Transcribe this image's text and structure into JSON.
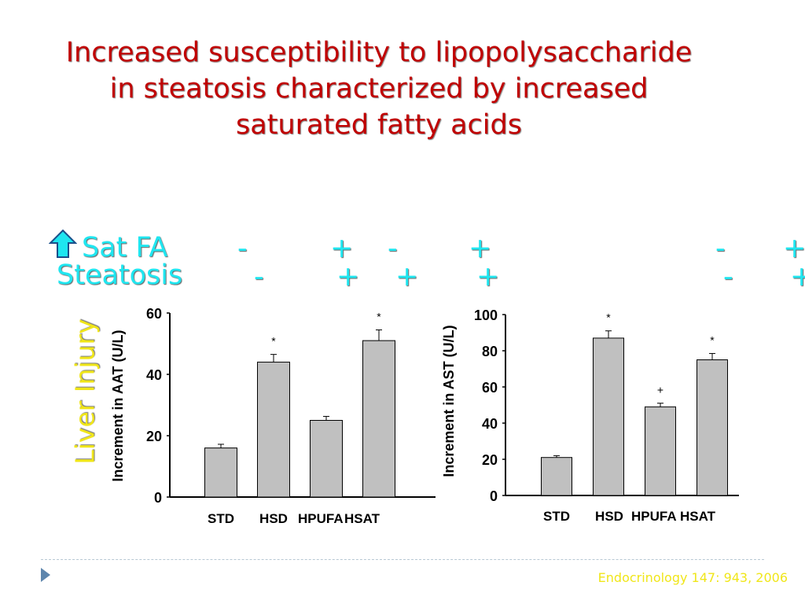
{
  "title_lines": [
    "Increased susceptibility to lipopolysaccharide",
    "in steatosis characterized by increased",
    "saturated fatty acids"
  ],
  "rows": {
    "satfa": {
      "label": "Sat FA",
      "signs_left": [
        "-",
        "+",
        "-",
        "+"
      ],
      "signs_right": [
        "-",
        "+"
      ]
    },
    "steatosis": {
      "label": "Steatosis",
      "signs_left": [
        "-",
        "+",
        "+",
        "+"
      ],
      "signs_right": [
        "-",
        "+"
      ]
    }
  },
  "side_label": "Liver Injury",
  "colors": {
    "title": "#c00000",
    "rows": "#1fe6f0",
    "side": "#f0e61a",
    "bar": "#c0c0c0",
    "citation": "#f0e61a"
  },
  "icons": {
    "up_arrow": "up-arrow-icon",
    "nav": "triangle-right-icon"
  },
  "citation": "Endocrinology 147: 943, 2006",
  "chart_data": [
    {
      "type": "bar",
      "categories": [
        "STD",
        "HSD",
        "HPUFA",
        "HSAT"
      ],
      "values": [
        16,
        44,
        25,
        51
      ],
      "errors": [
        1.2,
        2.5,
        1.3,
        3.5
      ],
      "annotations": [
        "",
        "*",
        "",
        "*"
      ],
      "ylabel": "Increment in AAT (U/L)",
      "ylim": [
        0,
        60
      ],
      "yticks": [
        "0",
        "20",
        "40",
        "60"
      ]
    },
    {
      "type": "bar",
      "categories": [
        "STD",
        "HSD",
        "HPUFA",
        "HSAT"
      ],
      "values": [
        21,
        87,
        49,
        75
      ],
      "errors": [
        1,
        4,
        2,
        3.5
      ],
      "annotations": [
        "",
        "*",
        "+",
        "*"
      ],
      "ylabel": "Increment in AST (U/L)",
      "ylim": [
        0,
        100
      ],
      "yticks": [
        "0",
        "20",
        "40",
        "60",
        "80",
        "100"
      ]
    }
  ]
}
